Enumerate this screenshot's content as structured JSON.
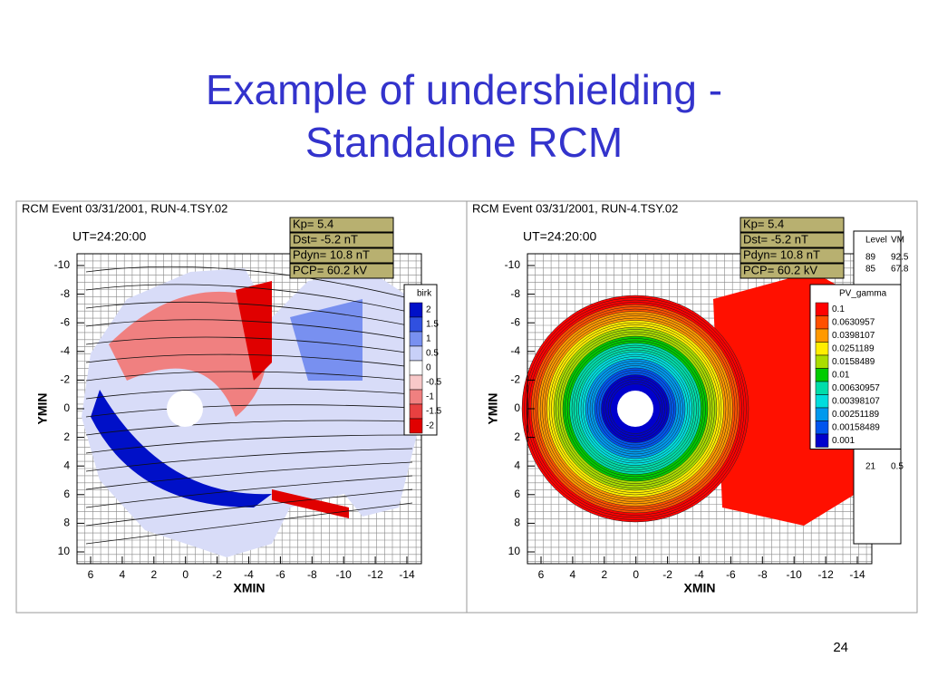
{
  "title": [
    "Example of undershielding -",
    "Standalone RCM"
  ],
  "page_number": "24",
  "panels": [
    {
      "header": "RCM Event 03/31/2001, RUN-4.TSY.02",
      "ut": "UT=24:20:00",
      "params": [
        "Kp= 5.4",
        "Dst= -5.2 nT",
        "Pdyn= 10.8 nT",
        "PCP= 60.2 kV"
      ],
      "y_label": "YMIN",
      "x_label": "XMIN",
      "yticks": [
        -10,
        -8,
        -6,
        -4,
        -2,
        0,
        2,
        4,
        6,
        8,
        10
      ],
      "xticks": [
        6,
        4,
        2,
        0,
        -2,
        -4,
        -6,
        -8,
        -10,
        -12,
        -14
      ],
      "legend": {
        "title": "birk",
        "labels": [
          "2",
          "1.5",
          "1",
          "0.5",
          "0",
          "-0.5",
          "-1",
          "-1.5",
          "-2"
        ],
        "colors": [
          "#0010c8",
          "#3050e0",
          "#7890f0",
          "#c8d0f8",
          "#ffffff",
          "#f8c8c8",
          "#f08080",
          "#e84040",
          "#e00000"
        ]
      }
    },
    {
      "header": "RCM Event 03/31/2001, RUN-4.TSY.02",
      "ut": "UT=24:20:00",
      "params": [
        "Kp= 5.4",
        "Dst= -5.2 nT",
        "Pdyn= 10.8 nT",
        "PCP= 60.2 kV"
      ],
      "y_label": "YMIN",
      "x_label": "XMIN",
      "yticks": [
        -10,
        -8,
        -6,
        -4,
        -2,
        0,
        2,
        4,
        6,
        8,
        10
      ],
      "xticks": [
        6,
        4,
        2,
        0,
        -2,
        -4,
        -6,
        -8,
        -10,
        -12,
        -14
      ],
      "legend": {
        "title": "PV_gamma",
        "labels": [
          "0.1",
          "0.0630957",
          "0.0398107",
          "0.0251189",
          "0.0158489",
          "0.01",
          "0.00630957",
          "0.00398107",
          "0.00251189",
          "0.00158489",
          "0.001"
        ],
        "colors": [
          "#ff0000",
          "#ff5000",
          "#ff9900",
          "#ffee00",
          "#aadd00",
          "#00cc00",
          "#00ddaa",
          "#00dddd",
          "#0099ee",
          "#0055ee",
          "#0000cc"
        ]
      },
      "level_table": {
        "header": [
          "Level",
          "VM"
        ],
        "rows": [
          [
            "89",
            "92.5"
          ],
          [
            "85",
            "67.8"
          ],
          [
            "21",
            "0.5"
          ]
        ]
      }
    }
  ]
}
